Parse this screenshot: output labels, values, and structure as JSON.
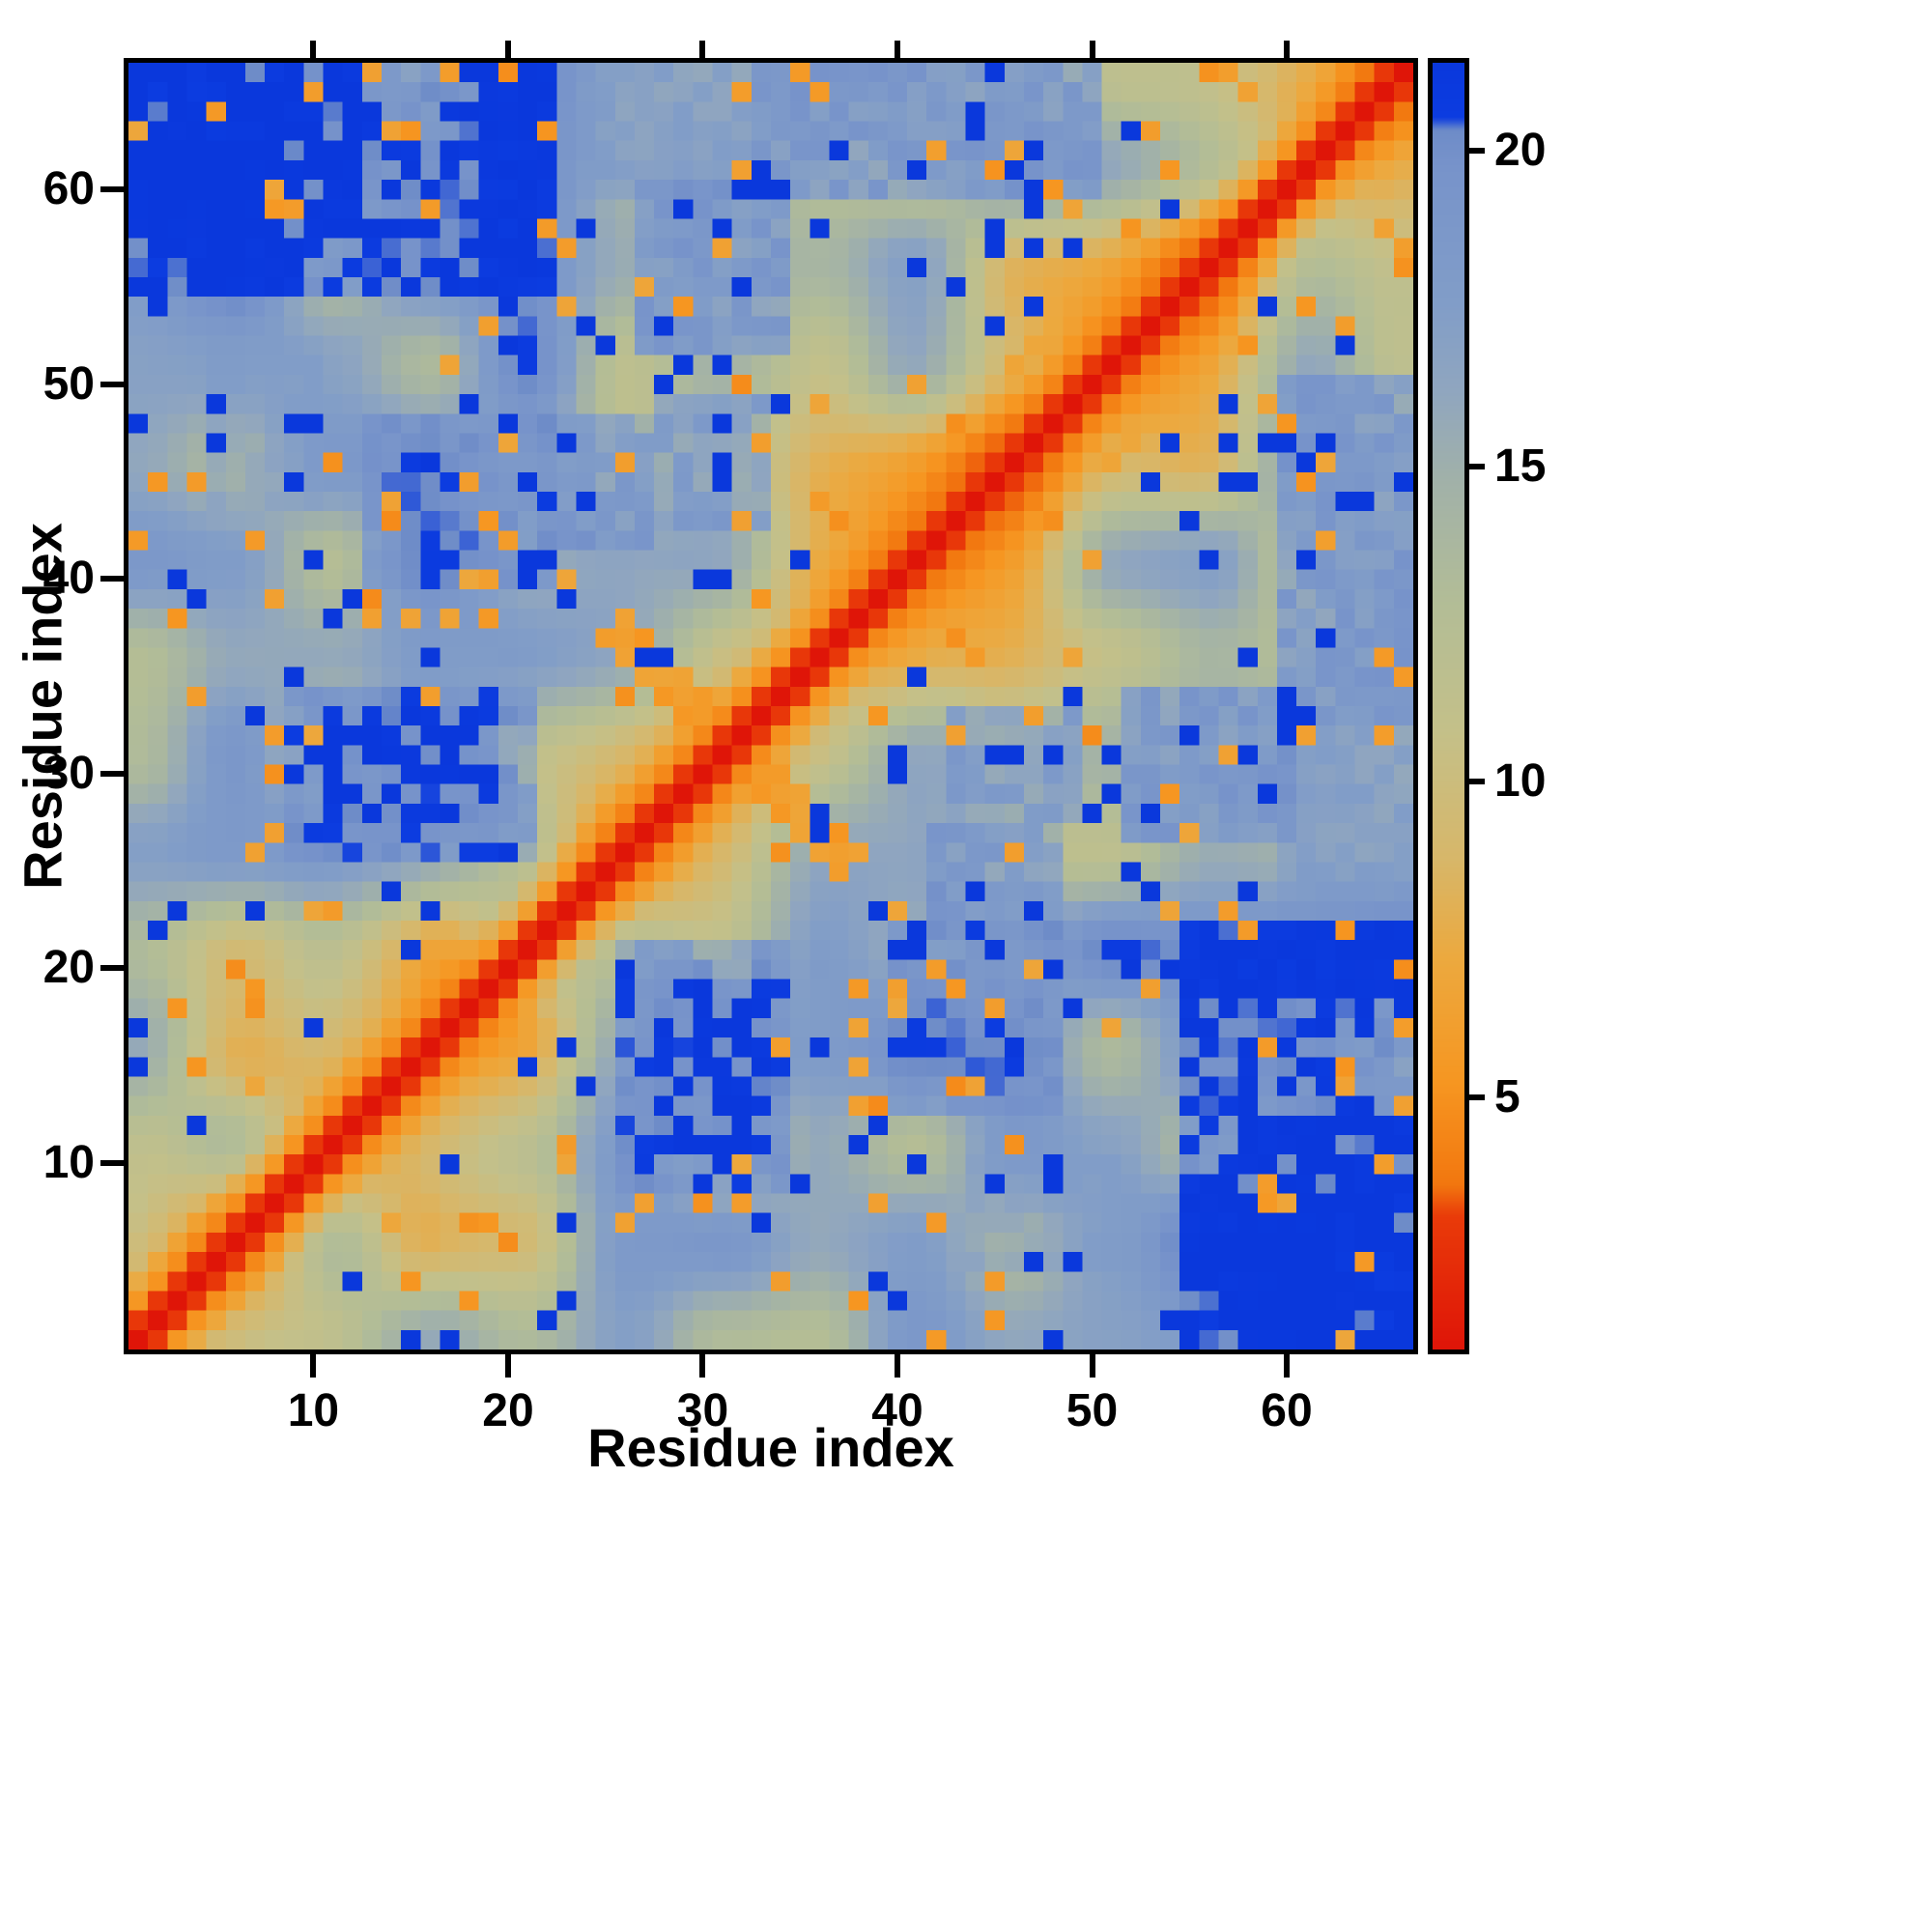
{
  "figure": {
    "background": "#ffffff",
    "frame_color": "#000000"
  },
  "chart_data": {
    "type": "heatmap",
    "title": "",
    "xlabel": "Residue index",
    "ylabel": "Residue index",
    "n_residues": 66,
    "x_range": [
      1,
      66
    ],
    "y_range": [
      1,
      66
    ],
    "x_ticks": [
      10,
      20,
      30,
      40,
      50,
      60
    ],
    "y_ticks": [
      10,
      20,
      30,
      40,
      50,
      60
    ],
    "value_range": [
      1,
      21.4
    ],
    "colorbar_ticks": [
      5,
      10,
      15,
      20
    ],
    "colorbar_position": "right",
    "grid": false,
    "description": "Symmetric residue-residue distance map: red along the diagonal (short distances), flanked by orange bands, khaki/slate mid-range values, and saturated blue for large (clipped) distances; large blue blocks in the upper-left/lower-right corners and off-diagonal patches, with an orange anti-diagonal contact arm crossing the diagonal near residue 31.",
    "colormap_stops": [
      [
        1.0,
        "#df1508"
      ],
      [
        3.1,
        "#e93b09"
      ],
      [
        3.6,
        "#f2770f"
      ],
      [
        5.2,
        "#f69621"
      ],
      [
        7.2,
        "#eca93f"
      ],
      [
        8.8,
        "#d7b76a"
      ],
      [
        10.8,
        "#c4c089"
      ],
      [
        12.8,
        "#b3bd96"
      ],
      [
        14.8,
        "#a1b1a9"
      ],
      [
        16.2,
        "#90a6bf"
      ],
      [
        17.6,
        "#819dc8"
      ],
      [
        19.8,
        "#7793ca"
      ],
      [
        20.35,
        "#6e8cc8"
      ],
      [
        20.55,
        "#0c3ce0"
      ],
      [
        21.4,
        "#0a38dc"
      ]
    ],
    "synthesis": {
      "seed": 1337,
      "decay": 11,
      "noise_cells": 13,
      "noise_amp": 4.6,
      "p_blue": 0.05,
      "p_orange": 0.038,
      "features": [
        {
          "x": [
            1,
            22
          ],
          "y": [
            55,
            66
          ],
          "v": 21.4,
          "w": 0.78
        },
        {
          "x": [
            1,
            12
          ],
          "y": [
            58,
            66
          ],
          "v": 21.4,
          "w": 0.85
        },
        {
          "x": [
            26,
            34
          ],
          "y": [
            9,
            21
          ],
          "v": 21.4,
          "w": 0.62
        },
        {
          "x": [
            28,
            33
          ],
          "y": [
            11,
            19
          ],
          "v": 21.4,
          "w": 0.8
        },
        {
          "x": [
            40,
            48
          ],
          "y": [
            13,
            22
          ],
          "v": 21.4,
          "w": 0.5
        },
        {
          "x": [
            52,
            60
          ],
          "y": [
            27,
            34
          ],
          "v": 21.4,
          "w": 0.55
        },
        {
          "x": [
            43,
            49
          ],
          "y": [
            28,
            33
          ],
          "v": 21.4,
          "w": 0.45
        },
        {
          "x": [
            22,
            27
          ],
          "y": [
            42,
            48
          ],
          "v": 21.4,
          "w": 0.5
        },
        {
          "x": [
            60,
            66
          ],
          "y": [
            33,
            50
          ],
          "v": 21.4,
          "w": 0.5
        },
        {
          "x": [
            23,
            42
          ],
          "y": [
            60,
            66
          ],
          "v": 20.0,
          "w": 0.35
        },
        {
          "x": [
            5,
            10
          ],
          "y": [
            44,
            52
          ],
          "v": 18.5,
          "w": 0.3
        }
      ],
      "cross": [
        {
          "sum": 63,
          "dmin": 2,
          "dmax": 12,
          "v": 5.0
        }
      ]
    }
  }
}
